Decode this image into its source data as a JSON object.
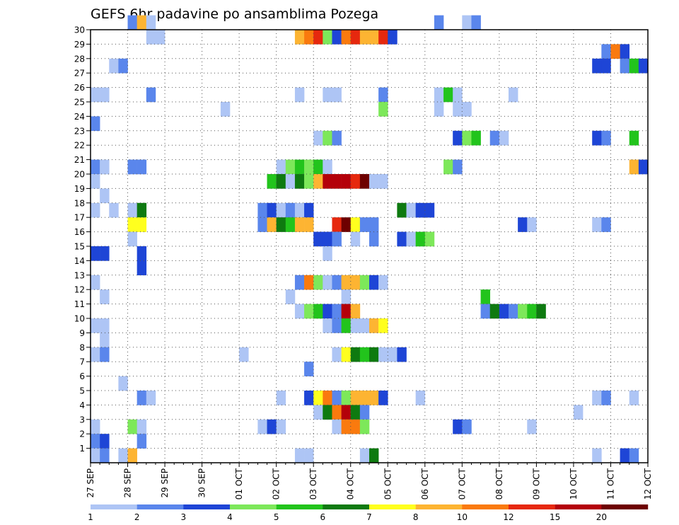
{
  "chart_data": {
    "type": "heatmap",
    "title": "GEFS 6hr padavine po ansamblima Pozega",
    "y_ticks": [
      "1",
      "2",
      "3",
      "4",
      "5",
      "6",
      "7",
      "8",
      "9",
      "10",
      "11",
      "12",
      "13",
      "14",
      "15",
      "16",
      "17",
      "18",
      "19",
      "20",
      "21",
      "22",
      "23",
      "24",
      "25",
      "26",
      "27",
      "28",
      "29",
      "30"
    ],
    "x_ticks": [
      "27 SEP",
      "28 SEP",
      "29 SEP",
      "30 SEP",
      "01 OCT",
      "02 OCT",
      "03 OCT",
      "04 OCT",
      "05 OCT",
      "06 OCT",
      "07 OCT",
      "08 OCT",
      "09 OCT",
      "10 OCT",
      "11 OCT",
      "12 OCT"
    ],
    "steps_per_day": 4,
    "colorbar": {
      "labels": [
        "1",
        "2",
        "3",
        "4",
        "5",
        "6",
        "7",
        "8",
        "10",
        "12",
        "15",
        "20"
      ],
      "colors": [
        "#aec5f5",
        "#5a86ec",
        "#1e45d6",
        "#7de85a",
        "#22c41c",
        "#0e7a10",
        "#ffff1e",
        "#fdb432",
        "#fa7a0e",
        "#e6280e",
        "#b4000a",
        "#6e0000"
      ]
    },
    "cells_legend": "each cell = [ensemble member, 6h step index from 27 SEP 00Z, color class 0-11 matching colorbar.colors]",
    "cells": [
      [
        30,
        4,
        1
      ],
      [
        30,
        5,
        7
      ],
      [
        30,
        6,
        0
      ],
      [
        30,
        37,
        1
      ],
      [
        30,
        40,
        0
      ],
      [
        30,
        41,
        1
      ],
      [
        29,
        6,
        0
      ],
      [
        29,
        7,
        0
      ],
      [
        29,
        22,
        7
      ],
      [
        29,
        23,
        8
      ],
      [
        29,
        24,
        9
      ],
      [
        29,
        25,
        3
      ],
      [
        29,
        26,
        2
      ],
      [
        29,
        27,
        8
      ],
      [
        29,
        28,
        9
      ],
      [
        29,
        29,
        7
      ],
      [
        29,
        30,
        7
      ],
      [
        29,
        31,
        9
      ],
      [
        29,
        32,
        2
      ],
      [
        28,
        55,
        1
      ],
      [
        28,
        56,
        8
      ],
      [
        28,
        57,
        2
      ],
      [
        27,
        2,
        0
      ],
      [
        27,
        3,
        1
      ],
      [
        27,
        54,
        2
      ],
      [
        27,
        55,
        2
      ],
      [
        27,
        57,
        1
      ],
      [
        27,
        58,
        4
      ],
      [
        27,
        59,
        2
      ],
      [
        25,
        0,
        0
      ],
      [
        25,
        1,
        0
      ],
      [
        25,
        6,
        1
      ],
      [
        25,
        22,
        0
      ],
      [
        25,
        25,
        0
      ],
      [
        25,
        26,
        0
      ],
      [
        25,
        31,
        1
      ],
      [
        25,
        37,
        0
      ],
      [
        25,
        38,
        4
      ],
      [
        25,
        39,
        0
      ],
      [
        25,
        45,
        0
      ],
      [
        24,
        14,
        0
      ],
      [
        24,
        31,
        3
      ],
      [
        24,
        37,
        0
      ],
      [
        24,
        39,
        0
      ],
      [
        24,
        40,
        0
      ],
      [
        23,
        0,
        1
      ],
      [
        22,
        24,
        0
      ],
      [
        22,
        25,
        3
      ],
      [
        22,
        26,
        1
      ],
      [
        22,
        39,
        2
      ],
      [
        22,
        40,
        3
      ],
      [
        22,
        41,
        4
      ],
      [
        22,
        43,
        1
      ],
      [
        22,
        44,
        0
      ],
      [
        22,
        54,
        2
      ],
      [
        22,
        55,
        1
      ],
      [
        22,
        58,
        4
      ],
      [
        20,
        0,
        1
      ],
      [
        20,
        1,
        0
      ],
      [
        20,
        4,
        1
      ],
      [
        20,
        5,
        1
      ],
      [
        20,
        20,
        0
      ],
      [
        20,
        21,
        3
      ],
      [
        20,
        22,
        4
      ],
      [
        20,
        23,
        3
      ],
      [
        20,
        24,
        4
      ],
      [
        20,
        25,
        0
      ],
      [
        20,
        38,
        3
      ],
      [
        20,
        39,
        1
      ],
      [
        20,
        58,
        7
      ],
      [
        20,
        59,
        2
      ],
      [
        19,
        0,
        0
      ],
      [
        19,
        19,
        4
      ],
      [
        19,
        20,
        5
      ],
      [
        19,
        21,
        0
      ],
      [
        19,
        22,
        5
      ],
      [
        19,
        23,
        3
      ],
      [
        19,
        24,
        7
      ],
      [
        19,
        25,
        10
      ],
      [
        19,
        26,
        10
      ],
      [
        19,
        27,
        10
      ],
      [
        19,
        28,
        9
      ],
      [
        19,
        29,
        11
      ],
      [
        19,
        30,
        0
      ],
      [
        19,
        31,
        0
      ],
      [
        18,
        1,
        0
      ],
      [
        17,
        0,
        0
      ],
      [
        17,
        2,
        0
      ],
      [
        17,
        4,
        0
      ],
      [
        17,
        5,
        5
      ],
      [
        17,
        18,
        1
      ],
      [
        17,
        19,
        2
      ],
      [
        17,
        20,
        0
      ],
      [
        17,
        21,
        1
      ],
      [
        17,
        22,
        0
      ],
      [
        17,
        23,
        2
      ],
      [
        17,
        33,
        5
      ],
      [
        17,
        34,
        0
      ],
      [
        17,
        35,
        2
      ],
      [
        17,
        36,
        2
      ],
      [
        16,
        4,
        6
      ],
      [
        16,
        5,
        6
      ],
      [
        16,
        18,
        1
      ],
      [
        16,
        19,
        7
      ],
      [
        16,
        20,
        5
      ],
      [
        16,
        21,
        4
      ],
      [
        16,
        22,
        7
      ],
      [
        16,
        23,
        7
      ],
      [
        16,
        26,
        9
      ],
      [
        16,
        27,
        11
      ],
      [
        16,
        28,
        6
      ],
      [
        16,
        29,
        1
      ],
      [
        16,
        30,
        1
      ],
      [
        16,
        46,
        2
      ],
      [
        16,
        47,
        0
      ],
      [
        16,
        54,
        0
      ],
      [
        16,
        55,
        1
      ],
      [
        15,
        4,
        0
      ],
      [
        15,
        24,
        2
      ],
      [
        15,
        25,
        2
      ],
      [
        15,
        26,
        1
      ],
      [
        15,
        28,
        0
      ],
      [
        15,
        30,
        1
      ],
      [
        15,
        33,
        2
      ],
      [
        15,
        34,
        0
      ],
      [
        15,
        35,
        4
      ],
      [
        15,
        36,
        3
      ],
      [
        14,
        0,
        2
      ],
      [
        14,
        1,
        2
      ],
      [
        14,
        5,
        2
      ],
      [
        14,
        25,
        0
      ],
      [
        13,
        5,
        2
      ],
      [
        12,
        0,
        0
      ],
      [
        12,
        22,
        1
      ],
      [
        12,
        23,
        8
      ],
      [
        12,
        24,
        3
      ],
      [
        12,
        25,
        0
      ],
      [
        12,
        26,
        1
      ],
      [
        12,
        27,
        7
      ],
      [
        12,
        28,
        7
      ],
      [
        12,
        29,
        3
      ],
      [
        12,
        30,
        2
      ],
      [
        12,
        31,
        0
      ],
      [
        11,
        1,
        0
      ],
      [
        11,
        21,
        0
      ],
      [
        11,
        27,
        0
      ],
      [
        11,
        42,
        4
      ],
      [
        10,
        22,
        0
      ],
      [
        10,
        23,
        3
      ],
      [
        10,
        24,
        4
      ],
      [
        10,
        25,
        2
      ],
      [
        10,
        26,
        1
      ],
      [
        10,
        27,
        10
      ],
      [
        10,
        28,
        7
      ],
      [
        10,
        42,
        1
      ],
      [
        10,
        43,
        5
      ],
      [
        10,
        44,
        2
      ],
      [
        10,
        45,
        1
      ],
      [
        10,
        46,
        3
      ],
      [
        10,
        47,
        4
      ],
      [
        10,
        48,
        5
      ],
      [
        9,
        0,
        0
      ],
      [
        9,
        1,
        0
      ],
      [
        9,
        25,
        0
      ],
      [
        9,
        26,
        1
      ],
      [
        9,
        27,
        4
      ],
      [
        9,
        28,
        0
      ],
      [
        9,
        29,
        0
      ],
      [
        9,
        30,
        7
      ],
      [
        9,
        31,
        6
      ],
      [
        8,
        1,
        0
      ],
      [
        7,
        0,
        0
      ],
      [
        7,
        1,
        1
      ],
      [
        7,
        16,
        0
      ],
      [
        7,
        26,
        0
      ],
      [
        7,
        27,
        6
      ],
      [
        7,
        28,
        5
      ],
      [
        7,
        29,
        4
      ],
      [
        7,
        30,
        5
      ],
      [
        7,
        31,
        0
      ],
      [
        7,
        32,
        0
      ],
      [
        7,
        33,
        2
      ],
      [
        6,
        23,
        1
      ],
      [
        5,
        3,
        0
      ],
      [
        4,
        5,
        1
      ],
      [
        4,
        6,
        0
      ],
      [
        4,
        20,
        0
      ],
      [
        4,
        23,
        2
      ],
      [
        4,
        24,
        6
      ],
      [
        4,
        25,
        8
      ],
      [
        4,
        26,
        1
      ],
      [
        4,
        27,
        3
      ],
      [
        4,
        28,
        7
      ],
      [
        4,
        29,
        7
      ],
      [
        4,
        30,
        7
      ],
      [
        4,
        31,
        2
      ],
      [
        4,
        35,
        0
      ],
      [
        4,
        54,
        0
      ],
      [
        4,
        55,
        1
      ],
      [
        4,
        58,
        0
      ],
      [
        3,
        24,
        0
      ],
      [
        3,
        25,
        5
      ],
      [
        3,
        26,
        8
      ],
      [
        3,
        27,
        10
      ],
      [
        3,
        28,
        5
      ],
      [
        3,
        29,
        1
      ],
      [
        3,
        52,
        0
      ],
      [
        2,
        0,
        0
      ],
      [
        2,
        4,
        3
      ],
      [
        2,
        5,
        0
      ],
      [
        2,
        18,
        0
      ],
      [
        2,
        19,
        2
      ],
      [
        2,
        20,
        0
      ],
      [
        2,
        26,
        0
      ],
      [
        2,
        27,
        8
      ],
      [
        2,
        28,
        8
      ],
      [
        2,
        29,
        3
      ],
      [
        2,
        39,
        2
      ],
      [
        2,
        40,
        1
      ],
      [
        2,
        47,
        0
      ],
      [
        1,
        0,
        1
      ],
      [
        1,
        1,
        2
      ],
      [
        1,
        5,
        1
      ],
      [
        0,
        0,
        0
      ],
      [
        0,
        1,
        1
      ],
      [
        0,
        3,
        0
      ],
      [
        0,
        4,
        7
      ],
      [
        0,
        22,
        0
      ],
      [
        0,
        23,
        0
      ],
      [
        0,
        29,
        0
      ],
      [
        0,
        30,
        5
      ],
      [
        0,
        54,
        0
      ],
      [
        0,
        57,
        2
      ],
      [
        0,
        58,
        1
      ]
    ]
  }
}
